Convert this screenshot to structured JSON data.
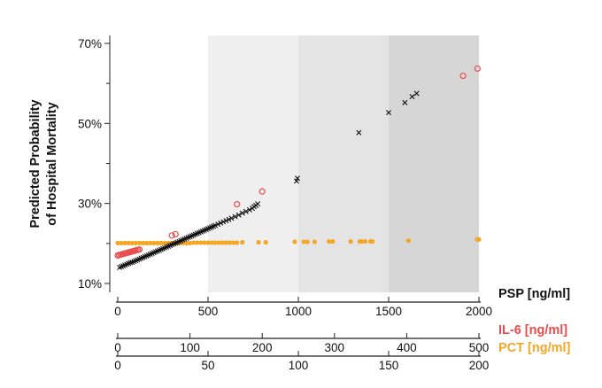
{
  "chart_data": {
    "type": "scatter",
    "ylabel": [
      "Predicted Probability",
      "of Hospital Mortality"
    ],
    "ylim": [
      9,
      70
    ],
    "y_ticks": [
      {
        "value": 70,
        "label": "70%"
      },
      {
        "value": 50,
        "label": "50%"
      },
      {
        "value": 30,
        "label": "30%"
      },
      {
        "value": 10,
        "label": "10%"
      }
    ],
    "y_minor_ticks": [
      20,
      40,
      60
    ],
    "shaded_bands": [
      {
        "x_range": [
          500,
          1000
        ],
        "color": "#efefef"
      },
      {
        "x_range": [
          1000,
          1500
        ],
        "color": "#e4e4e4"
      },
      {
        "x_range": [
          1500,
          2000
        ],
        "color": "#d6d6d7"
      }
    ],
    "x_axes": [
      {
        "title": "PSP [ng/ml]",
        "color": "#111111",
        "min": 0,
        "max": 2000,
        "ticks": [
          {
            "value": 0,
            "label": "0"
          },
          {
            "value": 500,
            "label": "500"
          },
          {
            "value": 1000,
            "label": "1000"
          },
          {
            "value": 1500,
            "label": "1500"
          },
          {
            "value": 2000,
            "label": "2000"
          }
        ]
      },
      {
        "title": "IL-6 [ng/ml]",
        "color": "#e84c4c",
        "min": 0,
        "max": 500,
        "ticks": [
          {
            "value": 0,
            "label": "0"
          },
          {
            "value": 100,
            "label": "100"
          },
          {
            "value": 200,
            "label": "200"
          },
          {
            "value": 300,
            "label": "300"
          },
          {
            "value": 400,
            "label": "400"
          },
          {
            "value": 500,
            "label": "500"
          }
        ]
      },
      {
        "title": "PCT [ng/ml]",
        "color": "#f5a623",
        "min": 0,
        "max": 200,
        "ticks": [
          {
            "value": 0,
            "label": "0"
          },
          {
            "value": 50,
            "label": "50"
          },
          {
            "value": 100,
            "label": "100"
          },
          {
            "value": 150,
            "label": "150"
          },
          {
            "value": 200,
            "label": "200"
          }
        ]
      }
    ],
    "series": [
      {
        "axis": 0,
        "marker": "cross",
        "color": "#111111",
        "points": [
          [
            10,
            14.0
          ],
          [
            20,
            14.2
          ],
          [
            30,
            14.4
          ],
          [
            40,
            14.6
          ],
          [
            50,
            14.8
          ],
          [
            60,
            15.0
          ],
          [
            70,
            15.2
          ],
          [
            80,
            15.3
          ],
          [
            90,
            15.5
          ],
          [
            100,
            15.7
          ],
          [
            110,
            15.9
          ],
          [
            120,
            16.1
          ],
          [
            130,
            16.3
          ],
          [
            140,
            16.5
          ],
          [
            150,
            16.7
          ],
          [
            160,
            16.9
          ],
          [
            170,
            17.1
          ],
          [
            180,
            17.3
          ],
          [
            190,
            17.5
          ],
          [
            200,
            17.7
          ],
          [
            210,
            17.9
          ],
          [
            220,
            18.1
          ],
          [
            230,
            18.3
          ],
          [
            240,
            18.5
          ],
          [
            250,
            18.7
          ],
          [
            260,
            18.9
          ],
          [
            270,
            19.1
          ],
          [
            280,
            19.3
          ],
          [
            290,
            19.5
          ],
          [
            300,
            19.7
          ],
          [
            310,
            19.9
          ],
          [
            320,
            20.1
          ],
          [
            330,
            20.3
          ],
          [
            340,
            20.5
          ],
          [
            350,
            20.7
          ],
          [
            360,
            20.9
          ],
          [
            370,
            21.1
          ],
          [
            380,
            21.3
          ],
          [
            390,
            21.5
          ],
          [
            400,
            21.7
          ],
          [
            410,
            21.9
          ],
          [
            420,
            22.1
          ],
          [
            430,
            22.3
          ],
          [
            440,
            22.5
          ],
          [
            450,
            22.7
          ],
          [
            460,
            22.9
          ],
          [
            470,
            23.1
          ],
          [
            480,
            23.3
          ],
          [
            490,
            23.5
          ],
          [
            500,
            23.7
          ],
          [
            510,
            23.9
          ],
          [
            520,
            24.1
          ],
          [
            530,
            24.3
          ],
          [
            540,
            24.5
          ],
          [
            555,
            24.8
          ],
          [
            570,
            25.1
          ],
          [
            585,
            25.4
          ],
          [
            600,
            25.7
          ],
          [
            615,
            26.0
          ],
          [
            630,
            26.3
          ],
          [
            650,
            26.7
          ],
          [
            670,
            27.1
          ],
          [
            690,
            27.6
          ],
          [
            710,
            28.0
          ],
          [
            730,
            28.4
          ],
          [
            745,
            28.8
          ],
          [
            755,
            29.2
          ],
          [
            765,
            29.5
          ],
          [
            775,
            29.9
          ],
          [
            990,
            35.6
          ],
          [
            995,
            36.3
          ],
          [
            1335,
            47.7
          ],
          [
            1500,
            52.7
          ],
          [
            1590,
            55.2
          ],
          [
            1630,
            56.7
          ],
          [
            1655,
            57.5
          ]
        ]
      },
      {
        "axis": 1,
        "marker": "circle",
        "color": "#e84c4c",
        "points": [
          [
            0,
            17.0
          ],
          [
            2,
            17.1
          ],
          [
            4,
            17.2
          ],
          [
            6,
            17.3
          ],
          [
            8,
            17.4
          ],
          [
            10,
            17.5
          ],
          [
            12,
            17.6
          ],
          [
            14,
            17.7
          ],
          [
            16,
            17.8
          ],
          [
            18,
            17.9
          ],
          [
            20,
            18.0
          ],
          [
            22,
            18.1
          ],
          [
            24,
            18.2
          ],
          [
            26,
            18.3
          ],
          [
            28,
            18.4
          ],
          [
            30,
            18.5
          ],
          [
            75,
            22.0
          ],
          [
            80,
            22.3
          ],
          [
            165,
            29.8
          ],
          [
            200,
            33.0
          ],
          [
            478,
            61.9
          ],
          [
            498,
            63.7
          ]
        ]
      },
      {
        "axis": 2,
        "marker": "dot",
        "color": "#f5a623",
        "points": [
          [
            0,
            20.1
          ],
          [
            2,
            20.1
          ],
          [
            4,
            20.1
          ],
          [
            6,
            20.1
          ],
          [
            8,
            20.1
          ],
          [
            10,
            20.1
          ],
          [
            12,
            20.1
          ],
          [
            14,
            20.1
          ],
          [
            16,
            20.1
          ],
          [
            18,
            20.1
          ],
          [
            20,
            20.1
          ],
          [
            22,
            20.1
          ],
          [
            24,
            20.1
          ],
          [
            26,
            20.1
          ],
          [
            28,
            20.1
          ],
          [
            30,
            20.1
          ],
          [
            32,
            20.1
          ],
          [
            34,
            20.1
          ],
          [
            36,
            20.1
          ],
          [
            38,
            20.1
          ],
          [
            40,
            20.1
          ],
          [
            42,
            20.2
          ],
          [
            44,
            20.2
          ],
          [
            46,
            20.2
          ],
          [
            48,
            20.2
          ],
          [
            50,
            20.2
          ],
          [
            52,
            20.2
          ],
          [
            54,
            20.2
          ],
          [
            56,
            20.2
          ],
          [
            58,
            20.2
          ],
          [
            60,
            20.2
          ],
          [
            62,
            20.2
          ],
          [
            64,
            20.2
          ],
          [
            66,
            20.2
          ],
          [
            69,
            20.3
          ],
          [
            78,
            20.3
          ],
          [
            82,
            20.3
          ],
          [
            98,
            20.4
          ],
          [
            103,
            20.4
          ],
          [
            105,
            20.4
          ],
          [
            109,
            20.4
          ],
          [
            117,
            20.5
          ],
          [
            119,
            20.5
          ],
          [
            129,
            20.5
          ],
          [
            134,
            20.5
          ],
          [
            135,
            20.5
          ],
          [
            137,
            20.5
          ],
          [
            140,
            20.5
          ],
          [
            141,
            20.5
          ],
          [
            161,
            20.7
          ],
          [
            199,
            21.0
          ],
          [
            200,
            21.0
          ]
        ]
      }
    ]
  }
}
